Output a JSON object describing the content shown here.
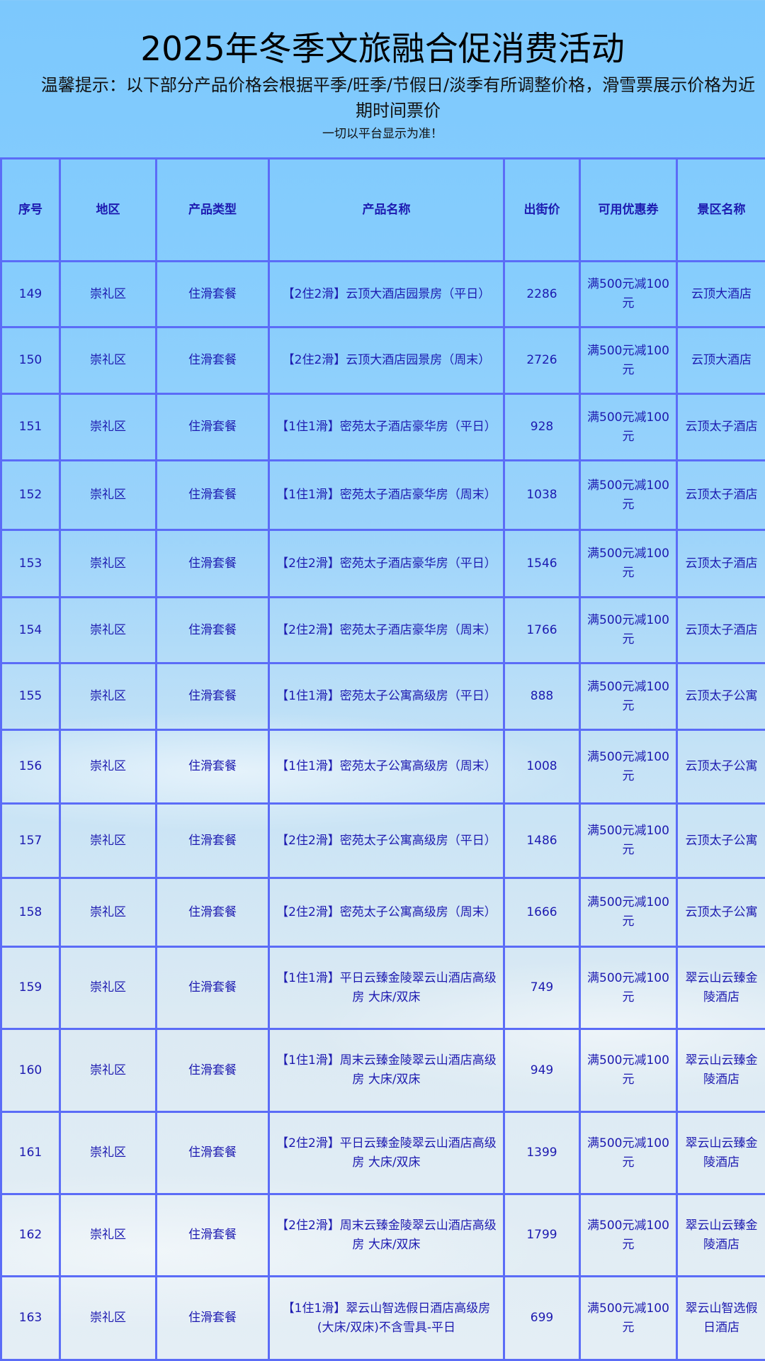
{
  "header": {
    "title": "2025年冬季文旅融合促消费活动",
    "tip": "温馨提示：以下部分产品价格会根据平季/旺季/节假日/淡季有所调整价格，滑雪票展示价格为近期时间票价",
    "note": "一切以平台显示为准！"
  },
  "colors": {
    "border": "#5b6cf7",
    "text": "#1d1ab0",
    "background_top": "#7cc8fd"
  },
  "table": {
    "columns": [
      "序号",
      "地区",
      "产品类型",
      "产品名称",
      "出街价",
      "可用优惠券",
      "景区名称"
    ],
    "rows": [
      [
        "149",
        "崇礼区",
        "住滑套餐",
        "【2住2滑】云顶大酒店园景房（平日）",
        "2286",
        "满500元减100元",
        "云顶大酒店"
      ],
      [
        "150",
        "崇礼区",
        "住滑套餐",
        "【2住2滑】云顶大酒店园景房（周末）",
        "2726",
        "满500元减100元",
        "云顶大酒店"
      ],
      [
        "151",
        "崇礼区",
        "住滑套餐",
        "【1住1滑】密苑太子酒店豪华房（平日）",
        "928",
        "满500元减100元",
        "云顶太子酒店"
      ],
      [
        "152",
        "崇礼区",
        "住滑套餐",
        "【1住1滑】密苑太子酒店豪华房（周末）",
        "1038",
        "满500元减100元",
        "云顶太子酒店"
      ],
      [
        "153",
        "崇礼区",
        "住滑套餐",
        "【2住2滑】密苑太子酒店豪华房（平日）",
        "1546",
        "满500元减100元",
        "云顶太子酒店"
      ],
      [
        "154",
        "崇礼区",
        "住滑套餐",
        "【2住2滑】密苑太子酒店豪华房（周末）",
        "1766",
        "满500元减100元",
        "云顶太子酒店"
      ],
      [
        "155",
        "崇礼区",
        "住滑套餐",
        "【1住1滑】密苑太子公寓高级房（平日）",
        "888",
        "满500元减100元",
        "云顶太子公寓"
      ],
      [
        "156",
        "崇礼区",
        "住滑套餐",
        "【1住1滑】密苑太子公寓高级房（周末）",
        "1008",
        "满500元减100元",
        "云顶太子公寓"
      ],
      [
        "157",
        "崇礼区",
        "住滑套餐",
        "【2住2滑】密苑太子公寓高级房（平日）",
        "1486",
        "满500元减100元",
        "云顶太子公寓"
      ],
      [
        "158",
        "崇礼区",
        "住滑套餐",
        "【2住2滑】密苑太子公寓高级房（周末）",
        "1666",
        "满500元减100元",
        "云顶太子公寓"
      ],
      [
        "159",
        "崇礼区",
        "住滑套餐",
        "【1住1滑】平日云臻金陵翠云山酒店高级房 大床/双床",
        "749",
        "满500元减100元",
        "翠云山云臻金陵酒店"
      ],
      [
        "160",
        "崇礼区",
        "住滑套餐",
        "【1住1滑】周末云臻金陵翠云山酒店高级房 大床/双床",
        "949",
        "满500元减100元",
        "翠云山云臻金陵酒店"
      ],
      [
        "161",
        "崇礼区",
        "住滑套餐",
        "【2住2滑】平日云臻金陵翠云山酒店高级房 大床/双床",
        "1399",
        "满500元减100元",
        "翠云山云臻金陵酒店"
      ],
      [
        "162",
        "崇礼区",
        "住滑套餐",
        "【2住2滑】周末云臻金陵翠云山酒店高级房 大床/双床",
        "1799",
        "满500元减100元",
        "翠云山云臻金陵酒店"
      ],
      [
        "163",
        "崇礼区",
        "住滑套餐",
        "【1住1滑】翠云山智选假日酒店高级房(大床/双床)不含雪具-平日",
        "699",
        "满500元减100元",
        "翠云山智选假日酒店"
      ]
    ]
  }
}
